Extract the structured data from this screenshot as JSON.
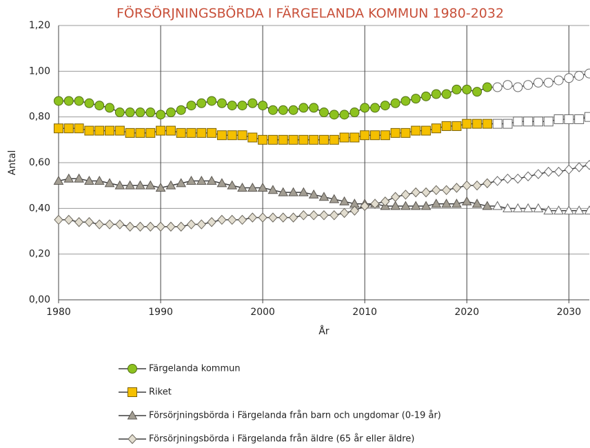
{
  "chart_data": {
    "type": "line",
    "title": "FÖRSÖRJNINGSBÖRDA I FÄRGELANDA KOMMUN 1980-2032",
    "x_label": "År",
    "y_label": "Antal",
    "x": [
      1980,
      1981,
      1982,
      1983,
      1984,
      1985,
      1986,
      1987,
      1988,
      1989,
      1990,
      1991,
      1992,
      1993,
      1994,
      1995,
      1996,
      1997,
      1998,
      1999,
      2000,
      2001,
      2002,
      2003,
      2004,
      2005,
      2006,
      2007,
      2008,
      2009,
      2010,
      2011,
      2012,
      2013,
      2014,
      2015,
      2016,
      2017,
      2018,
      2019,
      2020,
      2021,
      2022,
      2023,
      2024,
      2025,
      2026,
      2027,
      2028,
      2029,
      2030,
      2031,
      2032
    ],
    "xlim": [
      1980,
      2032
    ],
    "xticks": [
      1980,
      1990,
      2000,
      2010,
      2020,
      2030
    ],
    "ylim": [
      0,
      1.2
    ],
    "yticks": [
      {
        "value": 0,
        "label": "0,00"
      },
      {
        "value": 0.2,
        "label": "0,20"
      },
      {
        "value": 0.4,
        "label": "0,40"
      },
      {
        "value": 0.6,
        "label": "0,60"
      },
      {
        "value": 0.8,
        "label": "0,80"
      },
      {
        "value": 1.0,
        "label": "1,00"
      },
      {
        "value": 1.2,
        "label": "1,20"
      }
    ],
    "grid": true,
    "hollow_from": 2023,
    "series": [
      {
        "name": "Färgelanda kommun",
        "color": "#8dc21f",
        "marker": "circle",
        "values": [
          0.87,
          0.87,
          0.87,
          0.86,
          0.85,
          0.84,
          0.82,
          0.82,
          0.82,
          0.82,
          0.81,
          0.82,
          0.83,
          0.85,
          0.86,
          0.87,
          0.86,
          0.85,
          0.85,
          0.86,
          0.85,
          0.83,
          0.83,
          0.83,
          0.84,
          0.84,
          0.82,
          0.81,
          0.81,
          0.82,
          0.84,
          0.84,
          0.85,
          0.86,
          0.87,
          0.88,
          0.89,
          0.9,
          0.9,
          0.92,
          0.92,
          0.91,
          0.93,
          0.93,
          0.94,
          0.93,
          0.94,
          0.95,
          0.95,
          0.96,
          0.97,
          0.98,
          0.99
        ]
      },
      {
        "name": "Riket",
        "color": "#f5c000",
        "marker": "square",
        "values": [
          0.75,
          0.75,
          0.75,
          0.74,
          0.74,
          0.74,
          0.74,
          0.73,
          0.73,
          0.73,
          0.74,
          0.74,
          0.73,
          0.73,
          0.73,
          0.73,
          0.72,
          0.72,
          0.72,
          0.71,
          0.7,
          0.7,
          0.7,
          0.7,
          0.7,
          0.7,
          0.7,
          0.7,
          0.71,
          0.71,
          0.72,
          0.72,
          0.72,
          0.73,
          0.73,
          0.74,
          0.74,
          0.75,
          0.76,
          0.76,
          0.77,
          0.77,
          0.77,
          0.77,
          0.77,
          0.78,
          0.78,
          0.78,
          0.78,
          0.79,
          0.79,
          0.79,
          0.8
        ]
      },
      {
        "name": "Försörjningsbörda i Färgelanda från barn och ungdomar (0-19 år)",
        "color": "#a39e93",
        "marker": "triangle",
        "values": [
          0.52,
          0.53,
          0.53,
          0.52,
          0.52,
          0.51,
          0.5,
          0.5,
          0.5,
          0.5,
          0.49,
          0.5,
          0.51,
          0.52,
          0.52,
          0.52,
          0.51,
          0.5,
          0.49,
          0.49,
          0.49,
          0.48,
          0.47,
          0.47,
          0.47,
          0.46,
          0.45,
          0.44,
          0.43,
          0.42,
          0.42,
          0.42,
          0.41,
          0.41,
          0.41,
          0.41,
          0.41,
          0.42,
          0.42,
          0.42,
          0.43,
          0.42,
          0.41,
          0.41,
          0.4,
          0.4,
          0.4,
          0.4,
          0.39,
          0.39,
          0.39,
          0.39,
          0.39
        ]
      },
      {
        "name": "Försörjningsbörda i Färgelanda från äldre (65 år eller äldre)",
        "color": "#e2ddcf",
        "marker": "diamond",
        "values": [
          0.35,
          0.35,
          0.34,
          0.34,
          0.33,
          0.33,
          0.33,
          0.32,
          0.32,
          0.32,
          0.32,
          0.32,
          0.32,
          0.33,
          0.33,
          0.34,
          0.35,
          0.35,
          0.35,
          0.36,
          0.36,
          0.36,
          0.36,
          0.36,
          0.37,
          0.37,
          0.37,
          0.37,
          0.38,
          0.39,
          0.41,
          0.42,
          0.43,
          0.45,
          0.46,
          0.47,
          0.47,
          0.48,
          0.48,
          0.49,
          0.5,
          0.5,
          0.51,
          0.52,
          0.53,
          0.53,
          0.54,
          0.55,
          0.56,
          0.56,
          0.57,
          0.58,
          0.59
        ]
      }
    ]
  }
}
